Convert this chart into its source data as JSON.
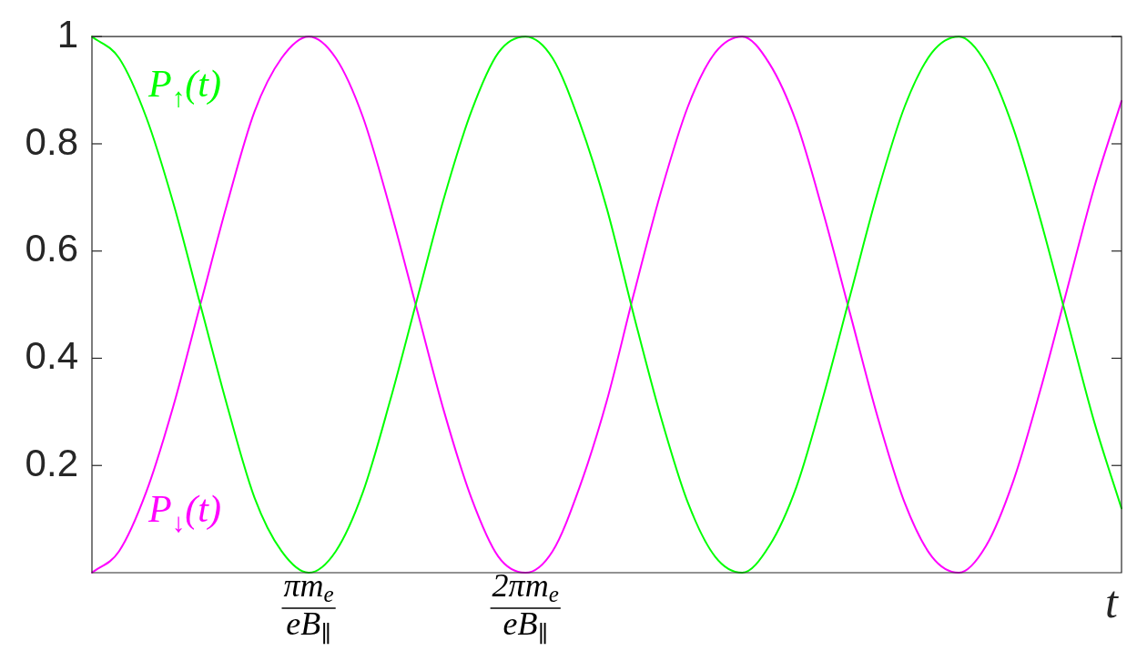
{
  "chart_data": {
    "type": "line",
    "xlabel": "t",
    "categories": [
      null,
      null,
      null,
      null,
      null,
      null,
      null,
      null,
      "πm$_{e}$\neB$_{∥}$",
      null,
      null,
      null,
      null,
      null,
      null,
      null,
      "2πm$_{e}$\neB$_{∥}$",
      null,
      null,
      null,
      null,
      null,
      null,
      null,
      null,
      null,
      null,
      null,
      null,
      null,
      null,
      null,
      null,
      null,
      null,
      null,
      null,
      null,
      null
    ],
    "series": [
      {
        "name": "P$_{↑}$(t)",
        "color": "#00ff00",
        "values": [
          1,
          0.96,
          0.85,
          0.69,
          0.5,
          0.31,
          0.14,
          0.04,
          0,
          0.04,
          0.15,
          0.32,
          0.51,
          0.7,
          0.86,
          0.97,
          1,
          0.96,
          0.84,
          0.68,
          0.48,
          0.29,
          0.13,
          0.03,
          0,
          0.05,
          0.16,
          0.33,
          0.52,
          0.71,
          0.87,
          0.97,
          1,
          0.95,
          0.83,
          0.66,
          0.47,
          0.28,
          0.12
        ]
      },
      {
        "name": "P$_{↓}$(t)",
        "color": "#ff00ff",
        "values": [
          0,
          0.04,
          0.15,
          0.31,
          0.5,
          0.69,
          0.86,
          0.96,
          1,
          0.96,
          0.85,
          0.68,
          0.49,
          0.3,
          0.14,
          0.03,
          0,
          0.04,
          0.16,
          0.32,
          0.52,
          0.71,
          0.87,
          0.97,
          1,
          0.95,
          0.84,
          0.67,
          0.48,
          0.29,
          0.13,
          0.03,
          0,
          0.05,
          0.17,
          0.34,
          0.53,
          0.72,
          0.88
        ]
      }
    ],
    "ylim": [
      0,
      1
    ],
    "yticks": [
      0.2,
      0.4,
      0.6,
      0.8,
      1
    ],
    "marker": "none",
    "line_style": "solid"
  }
}
